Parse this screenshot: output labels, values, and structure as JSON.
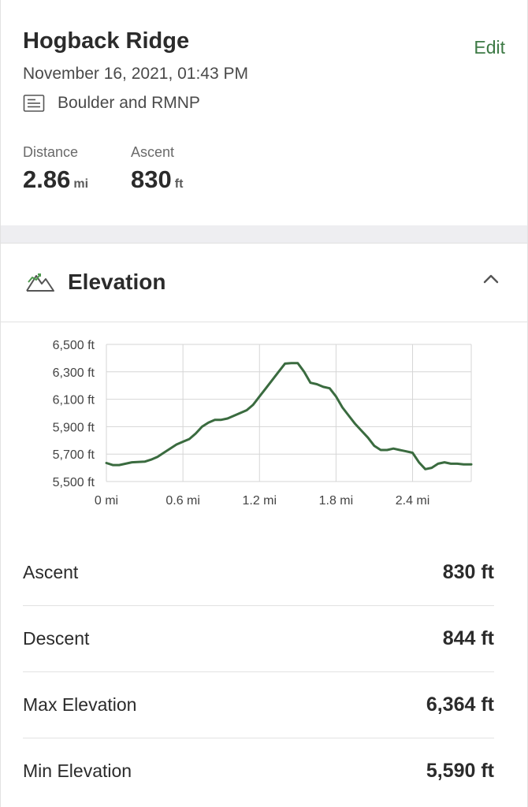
{
  "activity": {
    "title": "Hogback Ridge",
    "edit_label": "Edit",
    "datetime": "November 16, 2021, 01:43 PM",
    "list_name": "Boulder and RMNP"
  },
  "stats": {
    "distance": {
      "label": "Distance",
      "value": "2.86",
      "unit": "mi"
    },
    "ascent": {
      "label": "Ascent",
      "value": "830",
      "unit": "ft"
    }
  },
  "elevation_section": {
    "title": "Elevation",
    "icons": {
      "section": "mountain-icon",
      "toggle": "chevron-up-icon"
    }
  },
  "chart_data": {
    "type": "line",
    "title": "",
    "xlabel": "",
    "ylabel": "",
    "x_ticks": [
      "0 mi",
      "0.6 mi",
      "1.2 mi",
      "1.8 mi",
      "2.4 mi"
    ],
    "y_ticks": [
      "6,500 ft",
      "6,300 ft",
      "6,100 ft",
      "5,900 ft",
      "5,700 ft",
      "5,500 ft"
    ],
    "xlim": [
      0,
      2.86
    ],
    "ylim": [
      5500,
      6500
    ],
    "grid": true,
    "line_color": "#3a6b3f",
    "series": [
      {
        "x": [
          0,
          0.05,
          0.1,
          0.15,
          0.2,
          0.3,
          0.35,
          0.4,
          0.45,
          0.5,
          0.55,
          0.6,
          0.65,
          0.7,
          0.75,
          0.8,
          0.85,
          0.9,
          0.95,
          1.0,
          1.05,
          1.1,
          1.15,
          1.2,
          1.25,
          1.3,
          1.35,
          1.4,
          1.45,
          1.5,
          1.55,
          1.6,
          1.65,
          1.7,
          1.75,
          1.8,
          1.85,
          1.9,
          1.95,
          2.0,
          2.05,
          2.1,
          2.15,
          2.2,
          2.25,
          2.3,
          2.35,
          2.4,
          2.45,
          2.5,
          2.55,
          2.6,
          2.65,
          2.7,
          2.75,
          2.8,
          2.86
        ],
        "y": [
          5635,
          5620,
          5620,
          5630,
          5640,
          5645,
          5660,
          5680,
          5710,
          5740,
          5770,
          5790,
          5810,
          5850,
          5900,
          5930,
          5950,
          5950,
          5960,
          5980,
          6000,
          6020,
          6060,
          6120,
          6180,
          6240,
          6300,
          6360,
          6364,
          6364,
          6300,
          6220,
          6210,
          6190,
          6180,
          6120,
          6040,
          5980,
          5920,
          5870,
          5820,
          5760,
          5730,
          5730,
          5740,
          5730,
          5720,
          5710,
          5640,
          5590,
          5600,
          5630,
          5640,
          5630,
          5630,
          5625,
          5625
        ]
      }
    ]
  },
  "summary": [
    {
      "label": "Ascent",
      "value": "830 ft"
    },
    {
      "label": "Descent",
      "value": "844 ft"
    },
    {
      "label": "Max Elevation",
      "value": "6,364 ft"
    },
    {
      "label": "Min Elevation",
      "value": "5,590 ft"
    }
  ]
}
